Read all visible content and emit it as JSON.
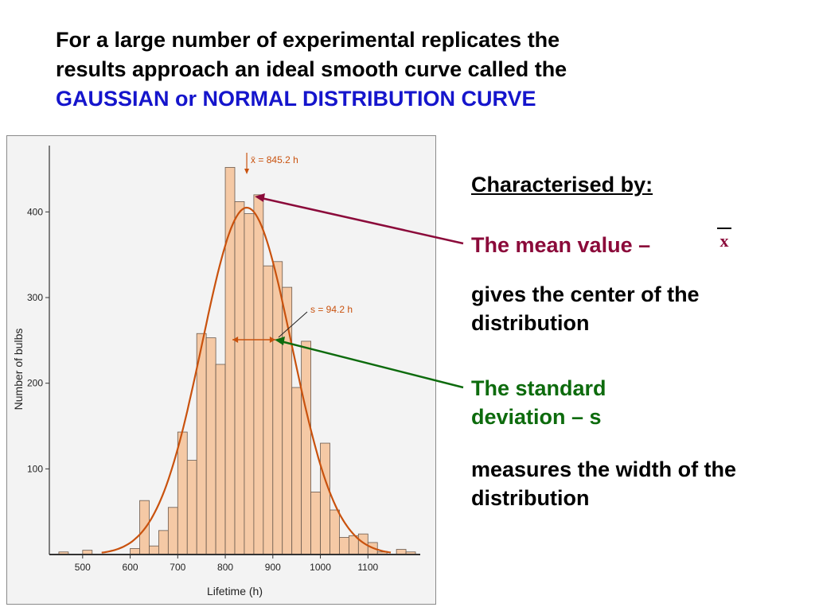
{
  "slide": {
    "title_line1": "For a large number of experimental replicates the",
    "title_line2": "results approach an ideal smooth curve called the",
    "title_highlight": "GAUSSIAN or NORMAL DISTRIBUTION CURVE",
    "characterised_heading": "Characterised by:",
    "mean_label": "The mean value –",
    "mean_symbol": "x",
    "mean_description": "gives the center of the distribution",
    "std_label": "The standard deviation – s",
    "std_description": "measures the width of the distribution",
    "colors": {
      "highlight_blue": "#1515cc",
      "mean_maroon": "#8b0a3a",
      "std_green": "#0d6b0d",
      "bar_fill": "#f5c9a5",
      "curve": "#c9520e"
    }
  },
  "chart_data": {
    "type": "bar",
    "x_bin_starts": [
      450,
      500,
      550,
      600,
      620,
      640,
      660,
      680,
      700,
      720,
      740,
      760,
      780,
      800,
      820,
      840,
      860,
      880,
      900,
      920,
      940,
      960,
      980,
      1000,
      1020,
      1040,
      1060,
      1080,
      1100,
      1120,
      1140,
      1160,
      1180
    ],
    "bin_width": 20,
    "values": [
      3,
      5,
      0,
      7,
      63,
      10,
      28,
      55,
      143,
      110,
      258,
      253,
      222,
      452,
      412,
      398,
      420,
      337,
      342,
      312,
      195,
      249,
      73,
      130,
      52,
      20,
      22,
      24,
      14,
      3,
      0,
      6,
      3
    ],
    "xlabel": "Lifetime (h)",
    "ylabel": "Number of bulbs",
    "xlim": [
      430,
      1210
    ],
    "ylim": [
      0,
      470
    ],
    "x_ticks": [
      500,
      600,
      700,
      800,
      900,
      1000,
      1100
    ],
    "y_ticks": [
      100,
      200,
      300,
      400
    ],
    "mean_annotation": "x̄ = 845.2 h",
    "std_annotation": "s = 94.2 h",
    "gaussian": {
      "mean": 845.2,
      "sd": 94.2,
      "peak": 405
    }
  }
}
